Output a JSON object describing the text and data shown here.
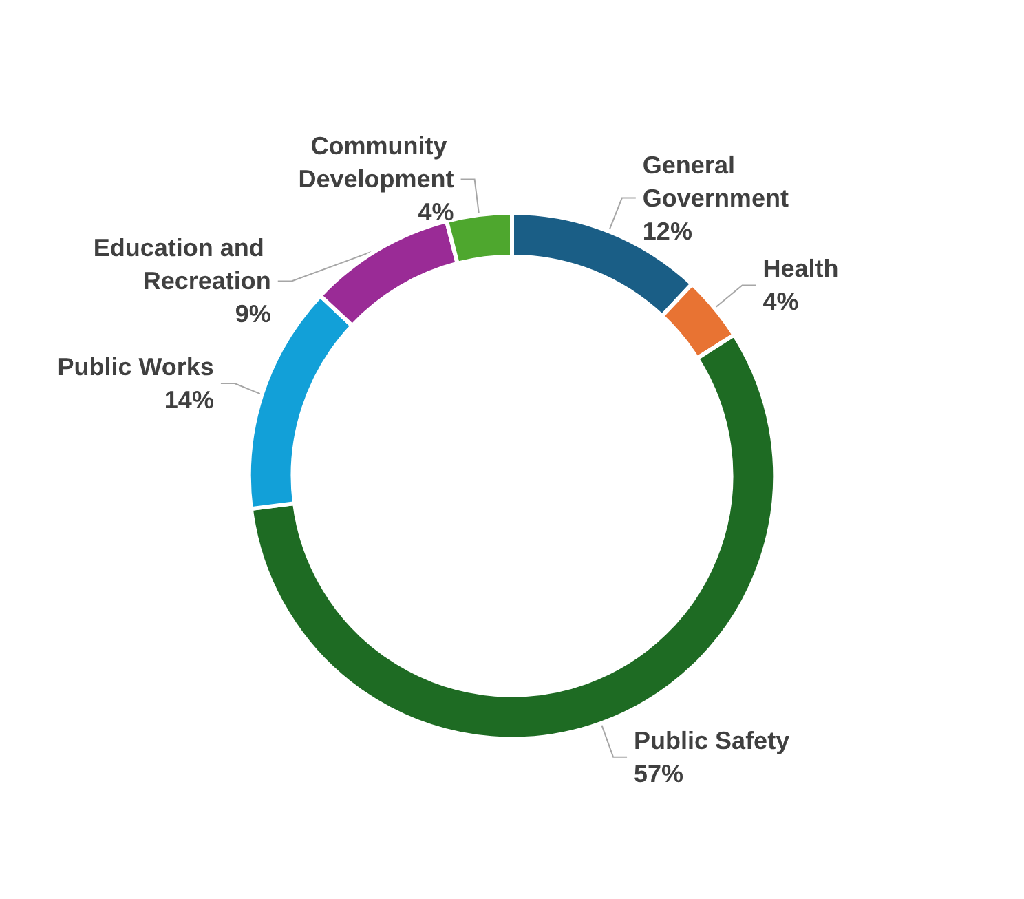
{
  "chart_data": {
    "type": "donut",
    "categories": [
      "General Government",
      "Health",
      "Public Safety",
      "Public Works",
      "Education and Recreation",
      "Community Development"
    ],
    "values": [
      12,
      4,
      57,
      14,
      9,
      4
    ],
    "colors": [
      "#1a5e86",
      "#e87333",
      "#1e6b23",
      "#12a0d8",
      "#9a2b96",
      "#4ea72e"
    ],
    "value_labels": [
      "12%",
      "4%",
      "57%",
      "14%",
      "9%",
      "4%"
    ],
    "legend": false
  }
}
